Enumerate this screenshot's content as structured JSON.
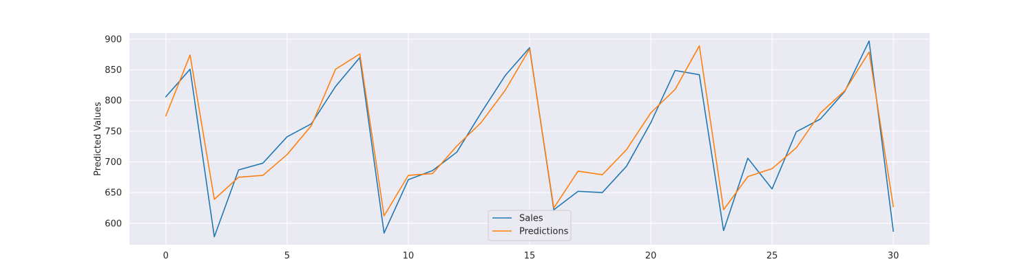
{
  "chart_data": {
    "type": "line",
    "title": "",
    "xlabel": "",
    "ylabel": "Predicted Values",
    "x": [
      0,
      1,
      2,
      3,
      4,
      5,
      6,
      7,
      8,
      9,
      10,
      11,
      12,
      13,
      14,
      15,
      16,
      17,
      18,
      19,
      20,
      21,
      22,
      23,
      24,
      25,
      26,
      27,
      28,
      29,
      30
    ],
    "xlim": [
      -1.5,
      31.5
    ],
    "ylim": [
      565,
      910
    ],
    "xticks": [
      0,
      5,
      10,
      15,
      20,
      25,
      30
    ],
    "yticks": [
      600,
      650,
      700,
      750,
      800,
      850,
      900
    ],
    "grid": true,
    "legend_position": "lower-center",
    "series": [
      {
        "name": "Sales",
        "color": "#1f77b4",
        "values": [
          806,
          851,
          578,
          687,
          698,
          741,
          762,
          823,
          870,
          584,
          671,
          686,
          716,
          780,
          841,
          886,
          622,
          652,
          650,
          693,
          764,
          849,
          842,
          588,
          706,
          656,
          749,
          770,
          815,
          897,
          587
        ]
      },
      {
        "name": "Predictions",
        "color": "#ff7f0e",
        "values": [
          775,
          874,
          639,
          675,
          678,
          712,
          759,
          851,
          876,
          612,
          678,
          681,
          726,
          764,
          817,
          884,
          625,
          685,
          679,
          720,
          780,
          818,
          889,
          622,
          676,
          689,
          723,
          780,
          816,
          879,
          627
        ]
      }
    ]
  }
}
